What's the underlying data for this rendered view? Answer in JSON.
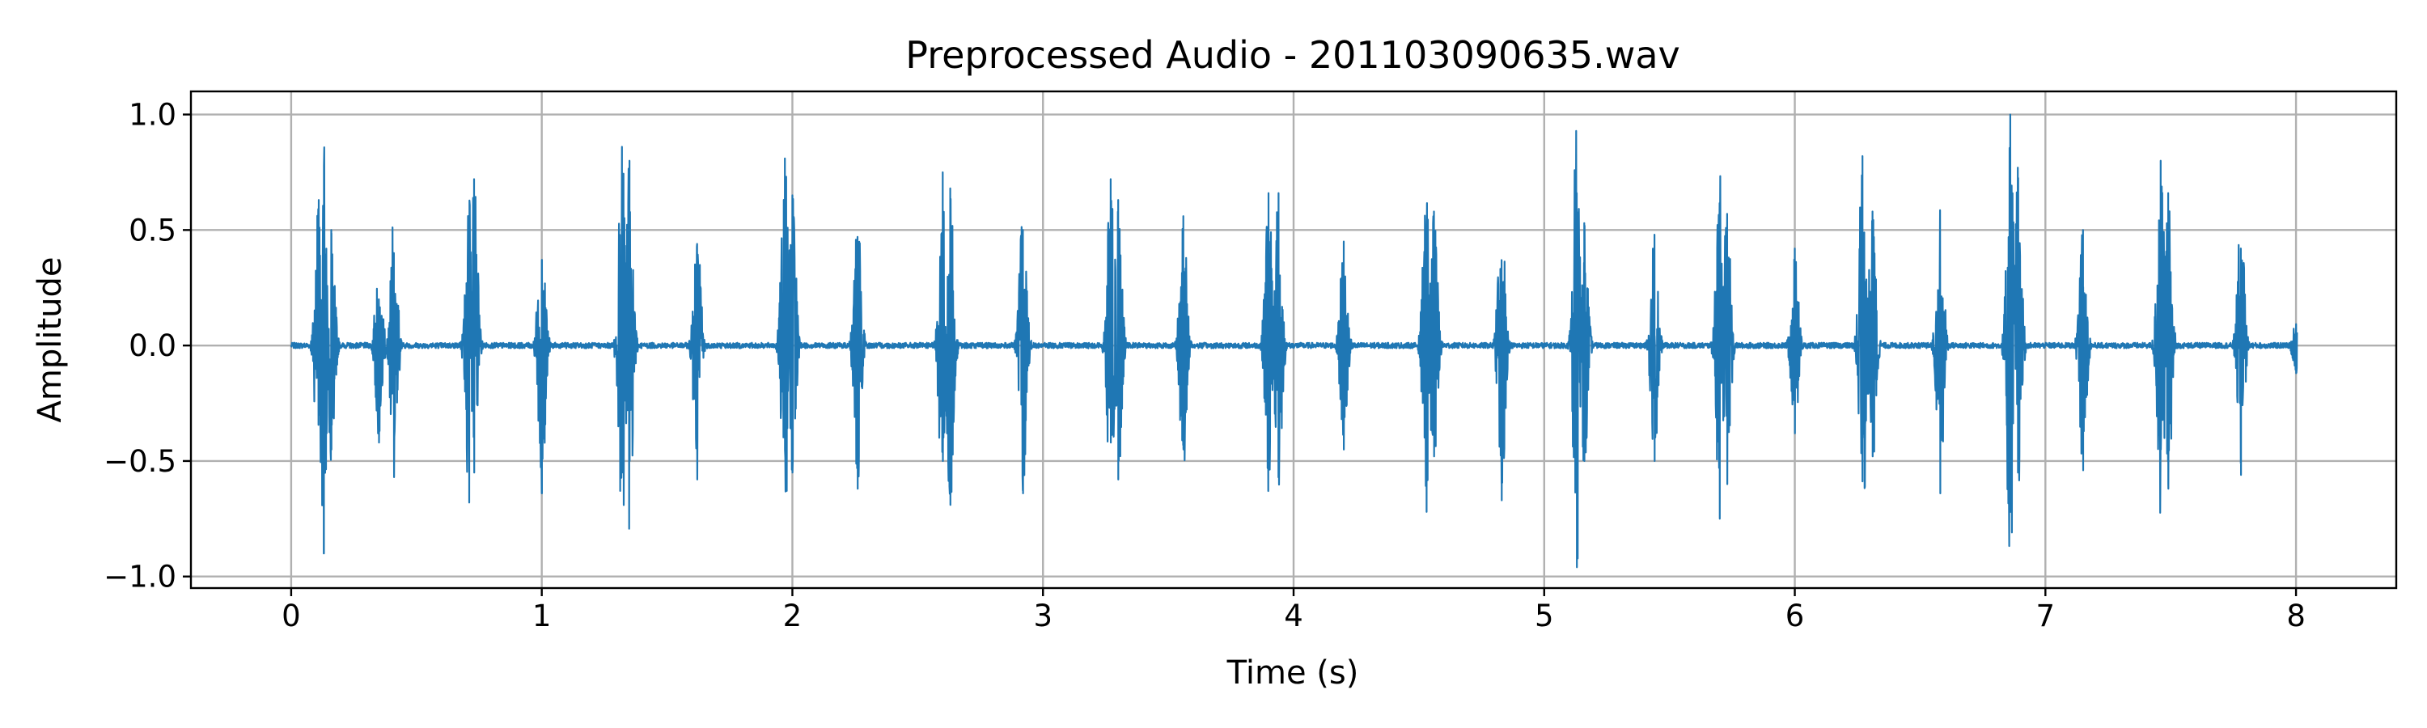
{
  "chart_data": {
    "type": "line",
    "title": "Preprocessed Audio - 201103090635.wav",
    "xlabel": "Time (s)",
    "ylabel": "Amplitude",
    "xlim": [
      -0.4,
      8.4
    ],
    "ylim": [
      -1.05,
      1.1
    ],
    "xticks": [
      0,
      1,
      2,
      3,
      4,
      5,
      6,
      7,
      8
    ],
    "xtick_labels": [
      "0",
      "1",
      "2",
      "3",
      "4",
      "5",
      "6",
      "7",
      "8"
    ],
    "yticks": [
      1.0,
      0.5,
      0.0,
      -0.5,
      -1.0
    ],
    "ytick_labels": [
      "1.0",
      "0.5",
      "0.0",
      "−0.5",
      "−1.0"
    ],
    "grid": true,
    "line_color": "#1f77b4",
    "series": [
      {
        "x": [
          0.11,
          0.13,
          0.16,
          0.35,
          0.41,
          0.71,
          0.73,
          1.0,
          1.32,
          1.35,
          1.62,
          1.97,
          2.0,
          2.26,
          2.6,
          2.63,
          2.92,
          3.27,
          3.3,
          3.56,
          3.9,
          3.94,
          4.2,
          4.53,
          4.56,
          4.83,
          5.13,
          5.16,
          5.44,
          5.7,
          5.73,
          6.0,
          6.27,
          6.31,
          6.58,
          6.86,
          6.89,
          7.15,
          7.46,
          7.49,
          7.78,
          8.0
        ],
        "y": [
          0.63,
          -0.9,
          0.5,
          0.2,
          0.4,
          0.52,
          0.72,
          0.37,
          0.86,
          0.8,
          0.44,
          0.81,
          0.65,
          0.47,
          0.75,
          0.68,
          0.5,
          0.72,
          0.63,
          0.56,
          0.66,
          0.66,
          0.45,
          0.5,
          0.58,
          0.37,
          0.66,
          0.53,
          0.48,
          0.6,
          0.57,
          0.42,
          0.82,
          0.58,
          0.34,
          1.0,
          0.77,
          0.5,
          0.8,
          0.66,
          0.42,
          0.06
        ],
        "y_min": [
          -0.2,
          -0.9,
          -0.45,
          -0.42,
          -0.57,
          -0.68,
          -0.55,
          -0.64,
          -0.55,
          -0.5,
          -0.58,
          -0.45,
          -0.55,
          -0.62,
          -0.5,
          -0.69,
          -0.64,
          -0.42,
          -0.58,
          -0.45,
          -0.5,
          -0.45,
          -0.45,
          -0.72,
          -0.48,
          -0.67,
          -0.96,
          -0.5,
          -0.5,
          -0.75,
          -0.6,
          -0.38,
          -0.4,
          -0.48,
          -0.64,
          -0.72,
          -0.55,
          -0.54,
          -0.45,
          -0.62,
          -0.56,
          -0.12
        ]
      }
    ]
  }
}
